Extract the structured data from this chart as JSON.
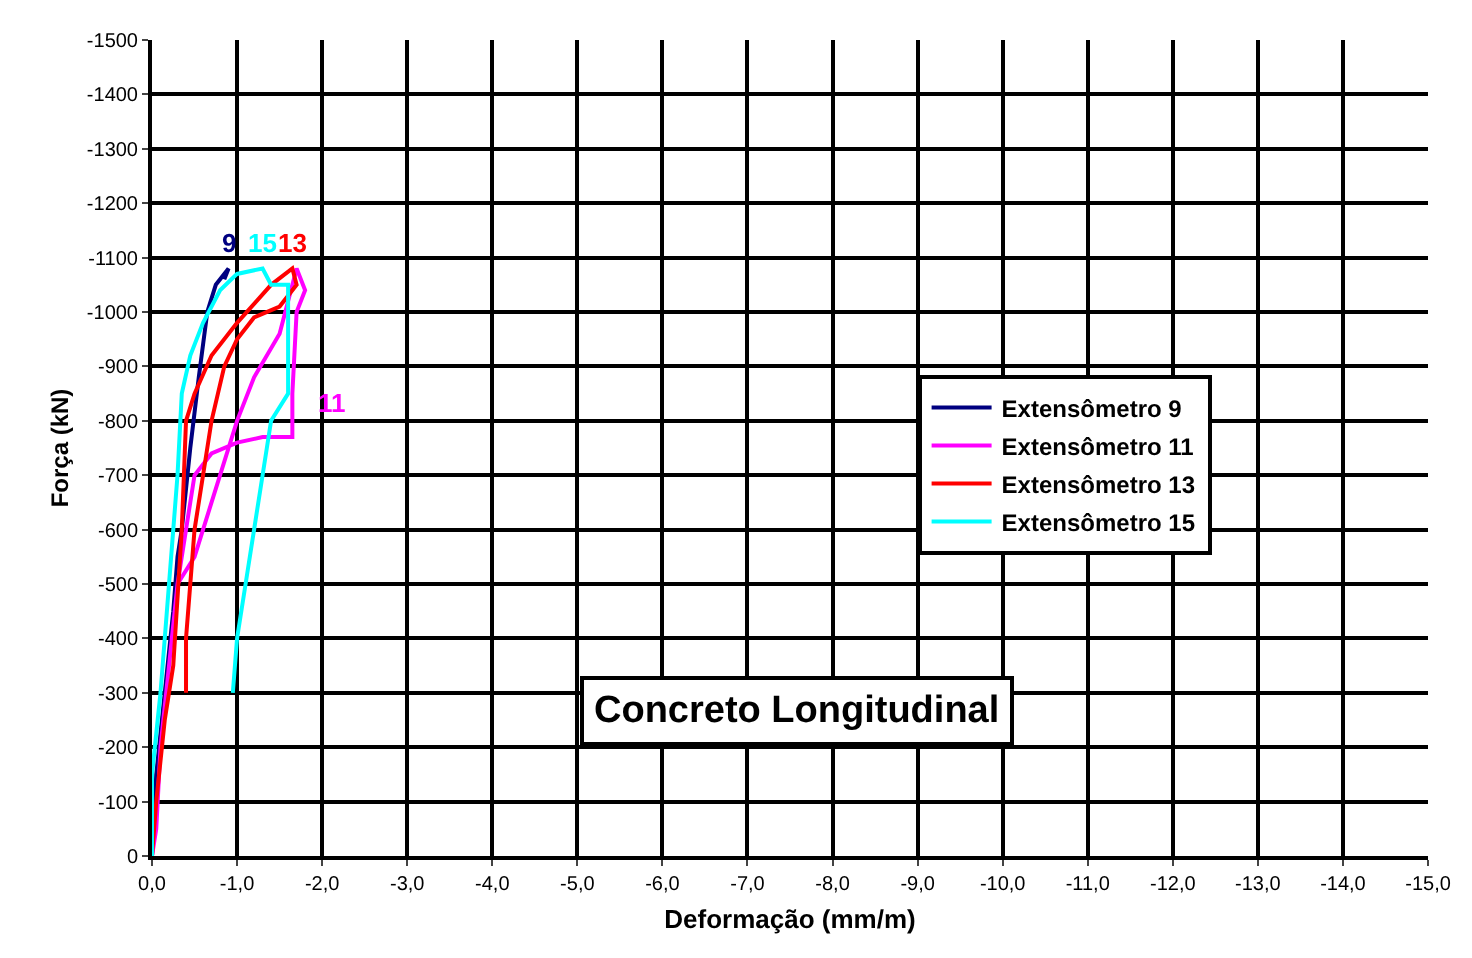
{
  "chart_data": {
    "type": "line",
    "title": "Concreto Longitudinal",
    "xlabel": "Deformação (mm/m)",
    "ylabel": "Força (kN)",
    "xlim": [
      0,
      -15
    ],
    "ylim": [
      0,
      -1500
    ],
    "xticks": [
      {
        "value": 0,
        "label": "0,0"
      },
      {
        "value": -1,
        "label": "-1,0"
      },
      {
        "value": -2,
        "label": "-2,0"
      },
      {
        "value": -3,
        "label": "-3,0"
      },
      {
        "value": -4,
        "label": "-4,0"
      },
      {
        "value": -5,
        "label": "-5,0"
      },
      {
        "value": -6,
        "label": "-6,0"
      },
      {
        "value": -7,
        "label": "-7,0"
      },
      {
        "value": -8,
        "label": "-8,0"
      },
      {
        "value": -9,
        "label": "-9,0"
      },
      {
        "value": -10,
        "label": "-10,0"
      },
      {
        "value": -11,
        "label": "-11,0"
      },
      {
        "value": -12,
        "label": "-12,0"
      },
      {
        "value": -13,
        "label": "-13,0"
      },
      {
        "value": -14,
        "label": "-14,0"
      },
      {
        "value": -15,
        "label": "-15,0"
      }
    ],
    "yticks": [
      0,
      -100,
      -200,
      -300,
      -400,
      -500,
      -600,
      -700,
      -800,
      -900,
      -1000,
      -1100,
      -1200,
      -1300,
      -1400,
      -1500
    ],
    "grid": true,
    "legend": "right",
    "marker": "none",
    "line_style": "solid",
    "series": [
      {
        "name": "Extensômetro 9",
        "color": "#000080",
        "x": [
          0,
          -0.05,
          -0.15,
          -0.25,
          -0.3,
          -0.35,
          -0.45,
          -0.55,
          -0.65,
          -0.75,
          -0.9,
          -0.85
        ],
        "values": [
          0,
          -150,
          -300,
          -450,
          -550,
          -600,
          -750,
          -880,
          -1000,
          -1050,
          -1080,
          -1060
        ]
      },
      {
        "name": "Extensômetro 11",
        "color": "#ff00ff",
        "x": [
          0,
          -0.05,
          -0.1,
          -0.2,
          -0.3,
          -0.4,
          -0.5,
          -0.7,
          -1.0,
          -1.3,
          -1.65,
          -1.65,
          -1.7,
          -1.8,
          -1.7,
          -1.5,
          -1.2,
          -1.0,
          -0.7,
          -0.5,
          -0.3
        ],
        "values": [
          0,
          -50,
          -200,
          -350,
          -500,
          -600,
          -700,
          -740,
          -760,
          -770,
          -770,
          -850,
          -1000,
          -1040,
          -1080,
          -960,
          -880,
          -800,
          -650,
          -550,
          -500
        ]
      },
      {
        "name": "Extensômetro 13",
        "color": "#ff0000",
        "x": [
          0,
          -0.05,
          -0.15,
          -0.25,
          -0.35,
          -0.4,
          -0.5,
          -0.7,
          -1.0,
          -1.4,
          -1.65,
          -1.7,
          -1.5,
          -1.2,
          -1.0,
          -0.85,
          -0.7,
          -0.6,
          -0.5,
          -0.45,
          -0.4,
          -0.4
        ],
        "values": [
          0,
          -100,
          -250,
          -350,
          -600,
          -800,
          -850,
          -920,
          -980,
          -1050,
          -1080,
          -1050,
          -1010,
          -990,
          -950,
          -900,
          -800,
          -700,
          -600,
          -500,
          -400,
          -300
        ]
      },
      {
        "name": "Extensômetro 15",
        "color": "#00ffff",
        "x": [
          0,
          0,
          -0.1,
          -0.2,
          -0.3,
          -0.35,
          -0.45,
          -0.6,
          -0.8,
          -1.0,
          -1.3,
          -1.4,
          -1.6,
          -1.6,
          -1.4,
          -1.35,
          -1.3,
          -1.2,
          -1.1,
          -1.0,
          -0.95
        ],
        "values": [
          0,
          -150,
          -300,
          -500,
          -700,
          -850,
          -920,
          -980,
          -1040,
          -1070,
          -1080,
          -1050,
          -1050,
          -850,
          -800,
          -750,
          -700,
          -600,
          -500,
          -400,
          -300
        ]
      }
    ],
    "annotations": [
      "9",
      "11",
      "13",
      "15"
    ]
  }
}
